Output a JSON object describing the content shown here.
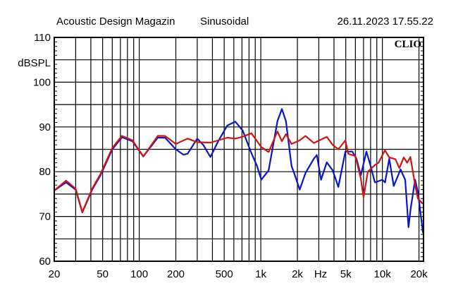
{
  "header": {
    "left": "Acoustic Design Magazin",
    "center": "Sinusoidal",
    "right": "26.11.2023 17.55.22"
  },
  "logo": "CLIO",
  "chart_data": {
    "type": "line",
    "title": "Sinusoidal",
    "xlabel": "Hz",
    "ylabel": "dBSPL",
    "xscale": "log",
    "xlim": [
      20,
      21800
    ],
    "ylim": [
      60,
      110
    ],
    "grid": true,
    "x_tick_labels": [
      {
        "f": 20,
        "label": "20"
      },
      {
        "f": 50,
        "label": "50"
      },
      {
        "f": 100,
        "label": "100"
      },
      {
        "f": 200,
        "label": "200"
      },
      {
        "f": 500,
        "label": "500"
      },
      {
        "f": 1000,
        "label": "1k"
      },
      {
        "f": 2000,
        "label": "2k"
      },
      {
        "f": 5000,
        "label": "5k"
      },
      {
        "f": 10000,
        "label": "10k"
      },
      {
        "f": 20000,
        "label": "20k"
      }
    ],
    "y_tick_labels": [
      {
        "v": 110,
        "label": "110"
      },
      {
        "v": 100,
        "label": "100"
      },
      {
        "v": 90,
        "label": "90"
      },
      {
        "v": 80,
        "label": "80"
      },
      {
        "v": 70,
        "label": "70"
      },
      {
        "v": 60,
        "label": "60"
      }
    ],
    "series": [
      {
        "name": "blue",
        "color": "#0a14c8",
        "points": [
          [
            20,
            75.8
          ],
          [
            25,
            77.6
          ],
          [
            30,
            76
          ],
          [
            34,
            70.9
          ],
          [
            41,
            76
          ],
          [
            48,
            79.2
          ],
          [
            60,
            85
          ],
          [
            72,
            87.7
          ],
          [
            88,
            86.8
          ],
          [
            108,
            83.4
          ],
          [
            142,
            87.6
          ],
          [
            163,
            87.6
          ],
          [
            200,
            85
          ],
          [
            231,
            83.8
          ],
          [
            250,
            84
          ],
          [
            300,
            87.4
          ],
          [
            336,
            86
          ],
          [
            385,
            83.3
          ],
          [
            450,
            87
          ],
          [
            530,
            90.3
          ],
          [
            617,
            91.2
          ],
          [
            710,
            89.2
          ],
          [
            835,
            84.2
          ],
          [
            930,
            81.3
          ],
          [
            1010,
            78.2
          ],
          [
            1160,
            80.3
          ],
          [
            1370,
            91.3
          ],
          [
            1490,
            94
          ],
          [
            1610,
            91.3
          ],
          [
            1790,
            81.3
          ],
          [
            1880,
            79.7
          ],
          [
            2090,
            76
          ],
          [
            2330,
            79.7
          ],
          [
            2730,
            82.9
          ],
          [
            2890,
            83.7
          ],
          [
            3130,
            78.2
          ],
          [
            3490,
            82.1
          ],
          [
            3900,
            80.3
          ],
          [
            4340,
            76.6
          ],
          [
            4960,
            84.5
          ],
          [
            5660,
            84.5
          ],
          [
            6130,
            82.9
          ],
          [
            6650,
            79.2
          ],
          [
            7390,
            84.5
          ],
          [
            8000,
            81.3
          ],
          [
            8680,
            77.6
          ],
          [
            10000,
            78.2
          ],
          [
            10520,
            77.6
          ],
          [
            11400,
            82.9
          ],
          [
            12400,
            76.8
          ],
          [
            14100,
            80.5
          ],
          [
            15400,
            78.2
          ],
          [
            16400,
            67.6
          ],
          [
            17100,
            71.8
          ],
          [
            18600,
            78.2
          ],
          [
            19600,
            75.5
          ],
          [
            21600,
            66.3
          ]
        ]
      },
      {
        "name": "red",
        "color": "#d21414",
        "points": [
          [
            20,
            75.8
          ],
          [
            25,
            78
          ],
          [
            30,
            76.2
          ],
          [
            34,
            71
          ],
          [
            41,
            76.2
          ],
          [
            48,
            79.5
          ],
          [
            60,
            85.3
          ],
          [
            72,
            88
          ],
          [
            88,
            87
          ],
          [
            108,
            83.4
          ],
          [
            142,
            88
          ],
          [
            163,
            88
          ],
          [
            200,
            86.2
          ],
          [
            250,
            87.4
          ],
          [
            300,
            86.6
          ],
          [
            385,
            86.5
          ],
          [
            530,
            87.6
          ],
          [
            617,
            87.4
          ],
          [
            710,
            87.8
          ],
          [
            835,
            88.6
          ],
          [
            1010,
            85.5
          ],
          [
            1160,
            84.4
          ],
          [
            1370,
            89
          ],
          [
            1490,
            86.8
          ],
          [
            1610,
            88.4
          ],
          [
            1790,
            86.2
          ],
          [
            2090,
            87
          ],
          [
            2330,
            88
          ],
          [
            2730,
            86.4
          ],
          [
            3130,
            87.2
          ],
          [
            3490,
            87.8
          ],
          [
            3900,
            86
          ],
          [
            4340,
            85
          ],
          [
            4960,
            87
          ],
          [
            5240,
            84
          ],
          [
            5990,
            83.5
          ],
          [
            6650,
            78.5
          ],
          [
            7000,
            74.3
          ],
          [
            7600,
            80
          ],
          [
            8680,
            81.5
          ],
          [
            9300,
            82
          ],
          [
            10500,
            84.8
          ],
          [
            11400,
            83.2
          ],
          [
            12800,
            82.8
          ],
          [
            13800,
            80.8
          ],
          [
            15000,
            83.2
          ],
          [
            16000,
            82
          ],
          [
            17000,
            83.3
          ],
          [
            18600,
            77
          ],
          [
            19600,
            74
          ],
          [
            21600,
            72.8
          ]
        ]
      }
    ]
  }
}
